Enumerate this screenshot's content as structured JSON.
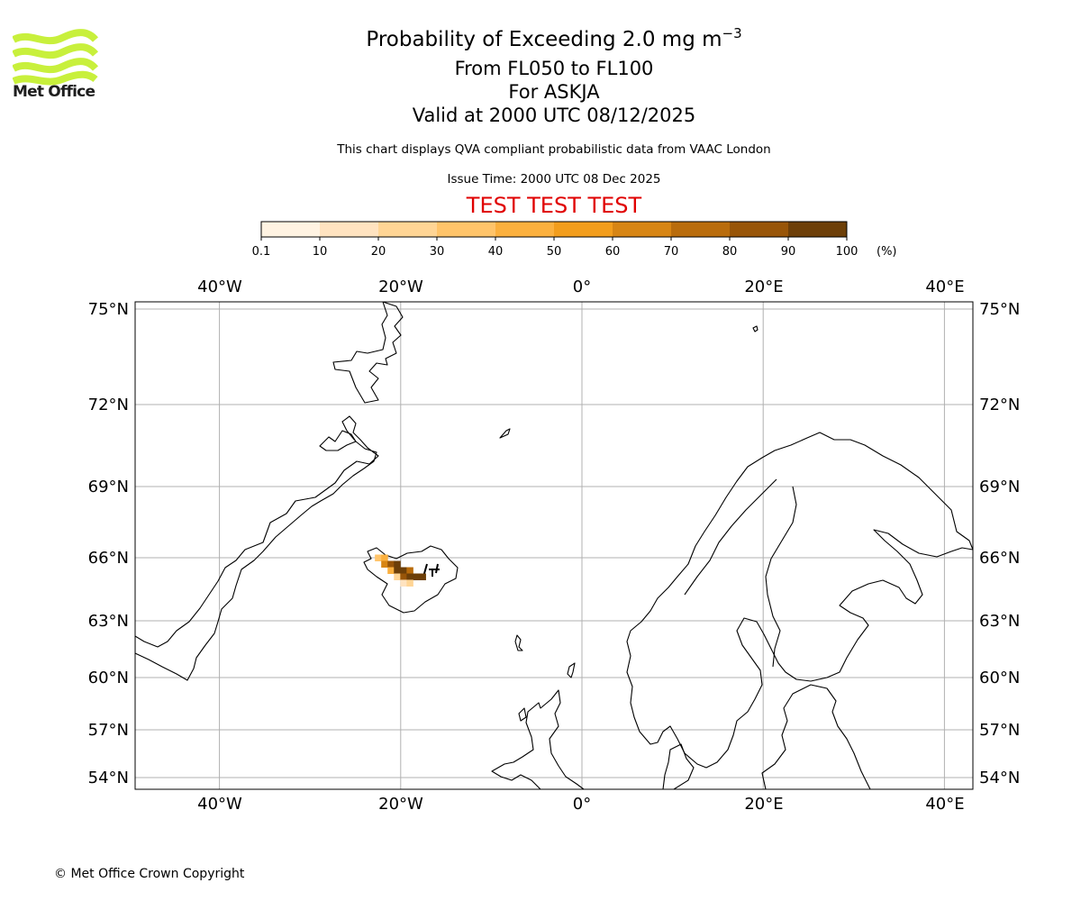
{
  "branding": {
    "logo_text": "Met Office",
    "logo_color": "#c8f03c"
  },
  "header": {
    "title_main": "Probability of Exceeding 2.0 mg m",
    "title_exponent": "−3",
    "level_range": "From FL050 to FL100",
    "volcano": "For ASKJA",
    "valid_time": "Valid at 2000 UTC 08/12/2025",
    "description": "This chart displays QVA compliant probabilistic data from VAAC London",
    "issue_time": "Issue Time: 2000 UTC 08 Dec 2025",
    "test_banner": "TEST TEST TEST",
    "test_color": "#e00000"
  },
  "colorbar": {
    "ticks": [
      "0.1",
      "10",
      "20",
      "30",
      "40",
      "50",
      "60",
      "70",
      "80",
      "90",
      "100"
    ],
    "unit": "(%)",
    "colors": [
      "#fff3e2",
      "#ffe3c0",
      "#ffd595",
      "#ffc46a",
      "#fbb03e",
      "#f29d1c",
      "#d78514",
      "#b96c0c",
      "#985508",
      "#6d3f08"
    ]
  },
  "map": {
    "lon_labels": [
      "40°W",
      "20°W",
      "0°",
      "20°E",
      "40°E"
    ],
    "lat_labels": [
      "75°N",
      "72°N",
      "69°N",
      "66°N",
      "63°N",
      "60°N",
      "57°N",
      "54°N"
    ],
    "ash_probability_cells": [
      {
        "lon": -22.5,
        "lat": 66.0,
        "pct": 35
      },
      {
        "lon": -21.8,
        "lat": 66.0,
        "pct": 45
      },
      {
        "lon": -21.8,
        "lat": 65.7,
        "pct": 60
      },
      {
        "lon": -21.1,
        "lat": 65.7,
        "pct": 85
      },
      {
        "lon": -20.4,
        "lat": 65.7,
        "pct": 95
      },
      {
        "lon": -21.1,
        "lat": 65.4,
        "pct": 40
      },
      {
        "lon": -20.4,
        "lat": 65.4,
        "pct": 92
      },
      {
        "lon": -19.7,
        "lat": 65.4,
        "pct": 96
      },
      {
        "lon": -19.0,
        "lat": 65.4,
        "pct": 70
      },
      {
        "lon": -20.4,
        "lat": 65.1,
        "pct": 25
      },
      {
        "lon": -19.7,
        "lat": 65.1,
        "pct": 80
      },
      {
        "lon": -19.0,
        "lat": 65.1,
        "pct": 98
      },
      {
        "lon": -18.3,
        "lat": 65.1,
        "pct": 98
      },
      {
        "lon": -17.6,
        "lat": 65.1,
        "pct": 90
      },
      {
        "lon": -19.7,
        "lat": 64.8,
        "pct": 15
      },
      {
        "lon": -19.0,
        "lat": 64.8,
        "pct": 20
      }
    ]
  },
  "footer": {
    "copyright": "© Met Office Crown Copyright"
  }
}
